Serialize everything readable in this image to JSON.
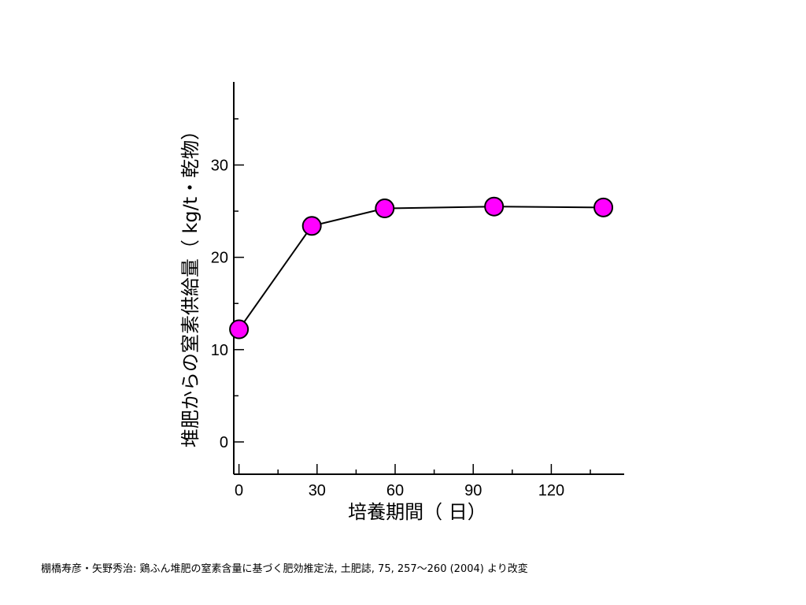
{
  "chart_data": {
    "type": "line",
    "title": "",
    "xlabel": "培養期間（ 日）",
    "ylabel": "堆肥からの窒素供給量（ kg/t・乾物）",
    "xlim": [
      -2,
      148
    ],
    "ylim": [
      -3.5,
      39
    ],
    "xticks": [
      0,
      30,
      60,
      90,
      120
    ],
    "xtick_labels": [
      "0",
      "30",
      "60",
      "90",
      "120"
    ],
    "xminor": [
      15,
      45,
      75,
      105,
      135
    ],
    "yticks": [
      0,
      10,
      20,
      30
    ],
    "ytick_labels": [
      "0",
      "10",
      "20",
      "30"
    ],
    "yminor": [
      5,
      15,
      25,
      35
    ],
    "grid": false,
    "series": [
      {
        "x": [
          0,
          28,
          56,
          98,
          140
        ],
        "y": [
          12.2,
          23.4,
          25.3,
          25.5,
          25.4
        ],
        "marker": "circle",
        "marker_color": "#ff00ff",
        "line_color": "#000000"
      }
    ]
  },
  "citation": "棚橋寿彦・矢野秀治: 鶏ふん堆肥の窒素含量に基づく肥効推定法, 土肥誌, 75, 257〜260 (2004) より改変"
}
